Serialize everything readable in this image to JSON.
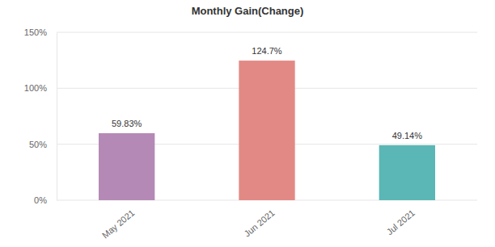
{
  "chart_data": {
    "type": "bar",
    "title": "Monthly Gain(Change)",
    "categories": [
      "May 2021",
      "Jun 2021",
      "Jul 2021"
    ],
    "values": [
      59.83,
      124.7,
      49.14
    ],
    "value_labels": [
      "59.83%",
      "124.7%",
      "49.14%"
    ],
    "colors": [
      "#b589b5",
      "#e38985",
      "#5ab7b5"
    ],
    "ylim": [
      0,
      150
    ],
    "yticks": [
      {
        "value": 0,
        "label": "0%"
      },
      {
        "value": 50,
        "label": "50%"
      },
      {
        "value": 100,
        "label": "100%"
      },
      {
        "value": 150,
        "label": "150%"
      }
    ],
    "grid": true,
    "data_labels": true
  }
}
